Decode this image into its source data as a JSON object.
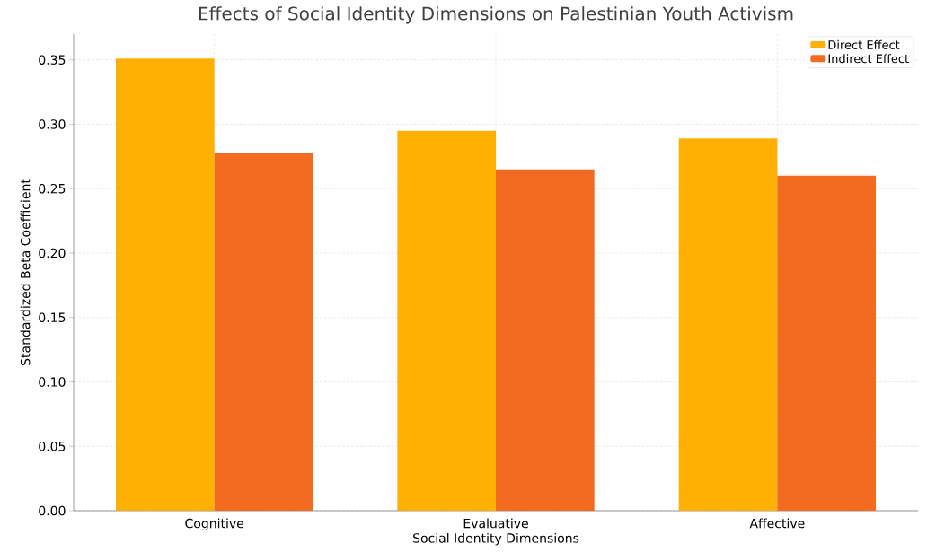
{
  "chart_data": {
    "type": "bar",
    "title": "Effects of Social Identity Dimensions on Palestinian Youth Activism",
    "xlabel": "Social Identity Dimensions",
    "ylabel": "Standardized Beta Coefficient",
    "categories": [
      "Cognitive",
      "Evaluative",
      "Affective"
    ],
    "series": [
      {
        "name": "Direct Effect",
        "color": "#ffb000",
        "values": [
          0.351,
          0.295,
          0.289
        ]
      },
      {
        "name": "Indirect Effect",
        "color": "#f26b21",
        "values": [
          0.278,
          0.265,
          0.26
        ]
      }
    ],
    "ylim": [
      0,
      0.37
    ],
    "yticks": [
      {
        "value": 0,
        "label": "0.00"
      },
      0.05,
      {
        "value": 0.1,
        "label": "0.10"
      },
      0.15,
      {
        "value": 0.2,
        "label": "0.20"
      },
      0.25,
      {
        "value": 0.3,
        "label": "0.30"
      },
      0.35
    ],
    "grid": true,
    "legend": "top right"
  }
}
